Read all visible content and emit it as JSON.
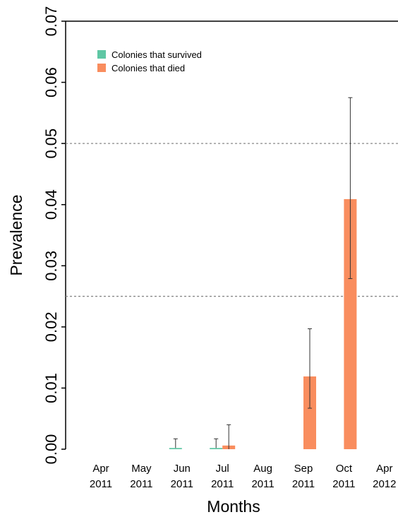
{
  "chart_data": {
    "type": "bar",
    "title": "",
    "xlabel": "Months",
    "ylabel": "Prevalence",
    "ylim": [
      0,
      0.07
    ],
    "yticks": [
      "0.00",
      "0.01",
      "0.02",
      "0.03",
      "0.04",
      "0.05",
      "0.06",
      "0.07"
    ],
    "categories": [
      [
        "Apr",
        "2011"
      ],
      [
        "May",
        "2011"
      ],
      [
        "Jun",
        "2011"
      ],
      [
        "Jul",
        "2011"
      ],
      [
        "Aug",
        "2011"
      ],
      [
        "Sep",
        "2011"
      ],
      [
        "Oct",
        "2011"
      ],
      [
        "Apr",
        "2012"
      ]
    ],
    "series": [
      {
        "name": "Colonies that survived",
        "color": "#5fc7a4",
        "values": [
          0,
          0,
          0.0002,
          0.0002,
          0,
          0,
          0,
          0
        ],
        "err_high": [
          null,
          null,
          0.0017,
          0.0017,
          null,
          null,
          null,
          null
        ]
      },
      {
        "name": "Colonies that died",
        "color": "#f98d5e",
        "values": [
          0,
          0,
          0,
          0.0006,
          0,
          0.0119,
          0.0409,
          0
        ],
        "err_low": [
          null,
          null,
          null,
          0,
          null,
          0.0067,
          0.0279,
          null
        ],
        "err_high": [
          null,
          null,
          null,
          0.004,
          null,
          0.0197,
          0.0575,
          null
        ]
      }
    ],
    "reference_lines": [
      0.025,
      0.05
    ],
    "legend_position": "top-left",
    "grid": false
  }
}
